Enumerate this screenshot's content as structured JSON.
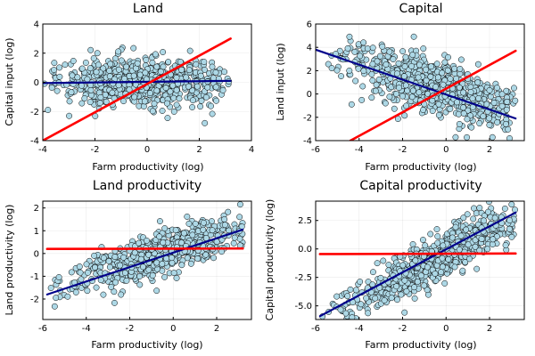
{
  "colors": {
    "point_fill": "#add8e6",
    "line_blue": "#00008b",
    "line_red": "#ff0000"
  },
  "chart_data": [
    {
      "type": "scatter",
      "title": "Land",
      "xlabel": "Farm productivity (log)",
      "ylabel": "Capital input (log)",
      "xlim": [
        -4,
        4
      ],
      "ylim": [
        -4,
        4
      ],
      "xticks": [
        -4,
        -2,
        0,
        2,
        4
      ],
      "yticks": [
        -4,
        -2,
        0,
        2,
        4
      ],
      "grid": true,
      "cloud": {
        "x_range": [
          -4.0,
          3.2
        ],
        "x_center": 0.0,
        "intercept": 0.0,
        "slope": 0.0,
        "spread": 0.8,
        "n": 700
      },
      "series": [
        {
          "type": "scatter",
          "color": "#add8e6"
        },
        {
          "type": "line",
          "color": "#00008b",
          "x": [
            -4.0,
            3.2
          ],
          "y": [
            -0.05,
            0.1
          ]
        },
        {
          "type": "line",
          "color": "#ff0000",
          "x": [
            -4.0,
            3.2
          ],
          "y": [
            -4.0,
            3.0
          ]
        }
      ]
    },
    {
      "type": "scatter",
      "title": "Capital",
      "xlabel": "Farm productivity (log)",
      "ylabel": "Land input (log)",
      "xlim": [
        -6,
        3.6
      ],
      "ylim": [
        -4,
        6
      ],
      "xticks": [
        -6,
        -4,
        -2,
        0,
        2
      ],
      "yticks": [
        -4,
        -2,
        0,
        2,
        4,
        6
      ],
      "grid": true,
      "cloud": {
        "x_range": [
          -5.8,
          3.2
        ],
        "x_center": -0.5,
        "intercept": 0.6,
        "slope": -0.55,
        "spread": 1.2,
        "n": 700
      },
      "series": [
        {
          "type": "scatter",
          "color": "#add8e6"
        },
        {
          "type": "line",
          "color": "#00008b",
          "x": [
            -6.0,
            3.2
          ],
          "y": [
            3.8,
            -2.1
          ]
        },
        {
          "type": "line",
          "color": "#ff0000",
          "x": [
            -4.4,
            3.2
          ],
          "y": [
            -4.0,
            3.7
          ]
        }
      ]
    },
    {
      "type": "scatter",
      "title": "Land productivity",
      "xlabel": "Farm productivity (log)",
      "ylabel": "Land productivity (log)",
      "xlim": [
        -6,
        3.6
      ],
      "ylim": [
        -2.9,
        2.3
      ],
      "xticks": [
        -6,
        -4,
        -2,
        0,
        2
      ],
      "yticks": [
        -2,
        -1,
        0,
        1,
        2
      ],
      "grid": true,
      "cloud": {
        "x_range": [
          -5.8,
          3.2
        ],
        "x_center": -0.5,
        "intercept": 0.0,
        "slope": 0.31,
        "spread": 0.45,
        "n": 700
      },
      "series": [
        {
          "type": "scatter",
          "color": "#add8e6"
        },
        {
          "type": "line",
          "color": "#00008b",
          "x": [
            -5.8,
            3.2
          ],
          "y": [
            -1.8,
            1.05
          ]
        },
        {
          "type": "line",
          "color": "#ff0000",
          "x": [
            -5.8,
            3.2
          ],
          "y": [
            0.2,
            0.22
          ]
        }
      ]
    },
    {
      "type": "scatter",
      "title": "Capital productivity",
      "xlabel": "Farm productivity (log)",
      "ylabel": "Capital productivity (log)",
      "xlim": [
        -6,
        3.6
      ],
      "ylim": [
        -6.2,
        4.2
      ],
      "xticks": [
        -6,
        -4,
        -2,
        0,
        2
      ],
      "yticks": [
        -5.0,
        -2.5,
        0.0,
        2.5
      ],
      "ytick_labels": [
        "-5.0",
        "-2.5",
        "0.0",
        "2.5"
      ],
      "grid": true,
      "cloud": {
        "x_range": [
          -5.8,
          3.2
        ],
        "x_center": -0.5,
        "intercept": -1.0,
        "slope": 1.0,
        "spread": 1.0,
        "n": 700
      },
      "series": [
        {
          "type": "scatter",
          "color": "#add8e6"
        },
        {
          "type": "line",
          "color": "#00008b",
          "x": [
            -5.8,
            3.2
          ],
          "y": [
            -5.9,
            3.2
          ]
        },
        {
          "type": "line",
          "color": "#ff0000",
          "x": [
            -5.8,
            3.2
          ],
          "y": [
            -0.45,
            -0.4
          ]
        }
      ]
    }
  ]
}
